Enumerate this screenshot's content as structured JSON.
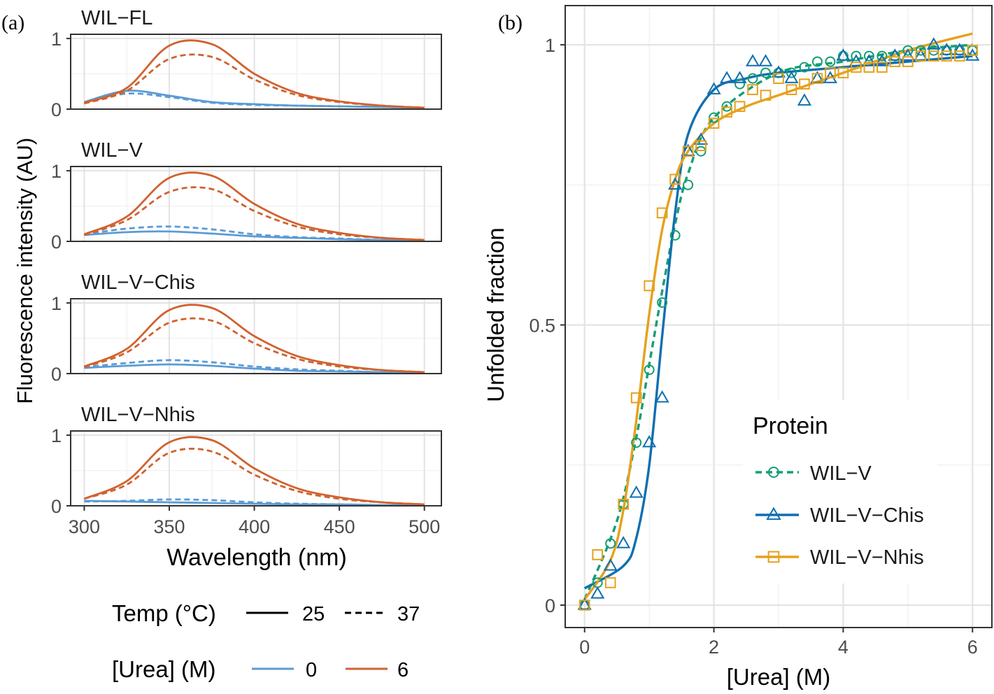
{
  "panel_a": {
    "label": "(a)",
    "ylabel": "Fluorescence intensity (AU)",
    "xlabel": "Wavelength (nm)",
    "legend": {
      "temp_title": "Temp (°C)",
      "temp_levels": [
        {
          "label": "25",
          "dash": "solid"
        },
        {
          "label": "37",
          "dash": "dashed"
        }
      ],
      "urea_title": "[Urea] (M)",
      "urea_levels": [
        {
          "label": "0",
          "color": "#5b9bd5"
        },
        {
          "label": "6",
          "color": "#d0622f"
        }
      ]
    }
  },
  "panel_b": {
    "label": "(b)",
    "legend_title": "Protein",
    "legend_entries": [
      {
        "label": "WIL−V",
        "color": "#139e74",
        "marker": "circle",
        "line": "dashed"
      },
      {
        "label": "WIL−V−Chis",
        "color": "#0f6fb0",
        "marker": "triangle",
        "line": "solid"
      },
      {
        "label": "WIL−V−Nhis",
        "color": "#e5a11c",
        "marker": "square",
        "line": "solid"
      }
    ]
  },
  "chart_data": [
    {
      "type": "line",
      "facet_strip": "WIL−FL",
      "xlabel": "Wavelength (nm)",
      "ylabel": "Fluorescence intensity (AU)",
      "xlim": [
        292,
        510
      ],
      "ylim": [
        0,
        1.06
      ],
      "xticks": [
        300,
        350,
        400,
        450,
        500
      ],
      "yticks": [
        0,
        1
      ],
      "grid": true,
      "x": [
        300,
        325,
        350,
        375,
        400,
        425,
        450,
        475,
        500
      ],
      "series": [
        {
          "urea": "0",
          "temp": "25",
          "values": [
            0.1,
            0.26,
            0.19,
            0.1,
            0.07,
            0.05,
            0.04,
            0.03,
            0.02
          ]
        },
        {
          "urea": "0",
          "temp": "37",
          "values": [
            0.09,
            0.22,
            0.17,
            0.09,
            0.06,
            0.05,
            0.04,
            0.03,
            0.02
          ]
        },
        {
          "urea": "6",
          "temp": "25",
          "values": [
            0.09,
            0.3,
            0.9,
            0.92,
            0.5,
            0.23,
            0.11,
            0.05,
            0.02
          ]
        },
        {
          "urea": "6",
          "temp": "37",
          "values": [
            0.08,
            0.26,
            0.71,
            0.74,
            0.42,
            0.2,
            0.1,
            0.05,
            0.02
          ]
        }
      ]
    },
    {
      "type": "line",
      "facet_strip": "WIL−V",
      "xlabel": "Wavelength (nm)",
      "ylabel": "Fluorescence intensity (AU)",
      "xlim": [
        292,
        510
      ],
      "ylim": [
        0,
        1.06
      ],
      "xticks": [
        300,
        350,
        400,
        450,
        500
      ],
      "yticks": [
        0,
        1
      ],
      "grid": true,
      "x": [
        300,
        325,
        350,
        375,
        400,
        425,
        450,
        475,
        500
      ],
      "series": [
        {
          "urea": "0",
          "temp": "25",
          "values": [
            0.09,
            0.13,
            0.14,
            0.11,
            0.07,
            0.05,
            0.03,
            0.02,
            0.01
          ]
        },
        {
          "urea": "0",
          "temp": "37",
          "values": [
            0.1,
            0.18,
            0.21,
            0.17,
            0.1,
            0.06,
            0.04,
            0.02,
            0.01
          ]
        },
        {
          "urea": "6",
          "temp": "25",
          "values": [
            0.1,
            0.35,
            0.9,
            0.93,
            0.53,
            0.25,
            0.12,
            0.05,
            0.02
          ]
        },
        {
          "urea": "6",
          "temp": "37",
          "values": [
            0.09,
            0.3,
            0.7,
            0.74,
            0.43,
            0.21,
            0.1,
            0.05,
            0.02
          ]
        }
      ]
    },
    {
      "type": "line",
      "facet_strip": "WIL−V−Chis",
      "xlabel": "Wavelength (nm)",
      "ylabel": "Fluorescence intensity (AU)",
      "xlim": [
        292,
        510
      ],
      "ylim": [
        0,
        1.06
      ],
      "xticks": [
        300,
        350,
        400,
        450,
        500
      ],
      "yticks": [
        0,
        1
      ],
      "grid": true,
      "x": [
        300,
        325,
        350,
        375,
        400,
        425,
        450,
        475,
        500
      ],
      "series": [
        {
          "urea": "0",
          "temp": "25",
          "values": [
            0.08,
            0.11,
            0.13,
            0.11,
            0.07,
            0.04,
            0.03,
            0.02,
            0.01
          ]
        },
        {
          "urea": "0",
          "temp": "37",
          "values": [
            0.09,
            0.15,
            0.19,
            0.16,
            0.1,
            0.06,
            0.04,
            0.02,
            0.01
          ]
        },
        {
          "urea": "6",
          "temp": "25",
          "values": [
            0.1,
            0.35,
            0.9,
            0.93,
            0.53,
            0.25,
            0.12,
            0.05,
            0.02
          ]
        },
        {
          "urea": "6",
          "temp": "37",
          "values": [
            0.09,
            0.3,
            0.72,
            0.75,
            0.43,
            0.21,
            0.1,
            0.05,
            0.02
          ]
        }
      ]
    },
    {
      "type": "line",
      "facet_strip": "WIL−V−Nhis",
      "xlabel": "Wavelength (nm)",
      "ylabel": "Fluorescence intensity (AU)",
      "xlim": [
        292,
        510
      ],
      "ylim": [
        0,
        1.06
      ],
      "xticks": [
        300,
        350,
        400,
        450,
        500
      ],
      "yticks": [
        0,
        1
      ],
      "grid": true,
      "x": [
        300,
        325,
        350,
        375,
        400,
        425,
        450,
        475,
        500
      ],
      "series": [
        {
          "urea": "0",
          "temp": "25",
          "values": [
            0.07,
            0.06,
            0.05,
            0.04,
            0.03,
            0.02,
            0.02,
            0.01,
            0.01
          ]
        },
        {
          "urea": "0",
          "temp": "37",
          "values": [
            0.06,
            0.07,
            0.09,
            0.08,
            0.05,
            0.03,
            0.02,
            0.01,
            0.01
          ]
        },
        {
          "urea": "6",
          "temp": "25",
          "values": [
            0.1,
            0.35,
            0.9,
            0.93,
            0.53,
            0.25,
            0.12,
            0.05,
            0.02
          ]
        },
        {
          "urea": "6",
          "temp": "37",
          "values": [
            0.1,
            0.3,
            0.75,
            0.77,
            0.44,
            0.21,
            0.1,
            0.05,
            0.02
          ]
        }
      ]
    },
    {
      "type": "scatter",
      "xlabel": "[Urea] (M)",
      "ylabel": "Unfolded fraction",
      "xlim": [
        -0.3,
        6.3
      ],
      "ylim": [
        -0.04,
        1.07
      ],
      "xticks": [
        0,
        2,
        4,
        6
      ],
      "yticks": [
        0,
        0.5,
        1
      ],
      "grid": true,
      "legend_position": "inside-bottom-right",
      "series": [
        {
          "name": "WIL−V",
          "points": {
            "x": [
              0,
              0.2,
              0.4,
              0.6,
              0.8,
              1.0,
              1.2,
              1.4,
              1.6,
              1.8,
              2.0,
              2.2,
              2.4,
              2.6,
              2.8,
              3.0,
              3.2,
              3.4,
              3.6,
              3.8,
              4.0,
              4.2,
              4.4,
              4.6,
              4.8,
              5.0,
              5.2,
              5.4,
              5.6,
              5.8,
              6.0
            ],
            "y": [
              0.0,
              0.04,
              0.11,
              0.18,
              0.29,
              0.42,
              0.54,
              0.66,
              0.75,
              0.81,
              0.87,
              0.89,
              0.93,
              0.94,
              0.95,
              0.95,
              0.95,
              0.96,
              0.97,
              0.97,
              0.98,
              0.98,
              0.98,
              0.98,
              0.98,
              0.99,
              0.99,
              0.99,
              0.99,
              0.99,
              0.99
            ]
          },
          "fit": {
            "x": [
              0,
              0.5,
              0.8,
              1.0,
              1.2,
              1.4,
              1.6,
              2.0,
              3.0,
              4.0,
              5.0,
              6.0
            ],
            "y": [
              0.01,
              0.15,
              0.3,
              0.43,
              0.56,
              0.68,
              0.77,
              0.87,
              0.95,
              0.97,
              0.99,
              1.0
            ]
          }
        },
        {
          "name": "WIL−V−Chis",
          "points": {
            "x": [
              0,
              0.2,
              0.4,
              0.6,
              0.8,
              1.0,
              1.2,
              1.4,
              1.6,
              1.8,
              2.0,
              2.2,
              2.4,
              2.6,
              2.8,
              3.0,
              3.2,
              3.4,
              3.6,
              3.8,
              4.0,
              4.2,
              4.4,
              4.6,
              4.8,
              5.0,
              5.2,
              5.4,
              5.6,
              5.8,
              6.0
            ],
            "y": [
              0.0,
              0.02,
              0.07,
              0.11,
              0.2,
              0.29,
              0.37,
              0.75,
              0.81,
              0.83,
              0.92,
              0.94,
              0.94,
              0.97,
              0.97,
              0.95,
              0.94,
              0.9,
              0.94,
              0.94,
              0.98,
              0.97,
              0.97,
              0.97,
              0.98,
              0.98,
              0.98,
              1.0,
              0.99,
              0.99,
              0.98
            ]
          },
          "fit": {
            "x": [
              0,
              0.6,
              0.8,
              1.0,
              1.2,
              1.4,
              1.6,
              2.0,
              2.5,
              3.0,
              4.0,
              5.0,
              6.0
            ],
            "y": [
              0.03,
              0.07,
              0.12,
              0.25,
              0.48,
              0.7,
              0.84,
              0.92,
              0.94,
              0.95,
              0.96,
              0.97,
              0.98
            ]
          }
        },
        {
          "name": "WIL−V−Nhis",
          "points": {
            "x": [
              0,
              0.2,
              0.4,
              0.6,
              0.8,
              1.0,
              1.2,
              1.4,
              1.6,
              1.8,
              2.0,
              2.2,
              2.4,
              2.6,
              2.8,
              3.0,
              3.2,
              3.4,
              3.6,
              3.8,
              4.0,
              4.2,
              4.4,
              4.6,
              4.8,
              5.0,
              5.2,
              5.4,
              5.6,
              5.8,
              6.0
            ],
            "y": [
              0.0,
              0.09,
              0.04,
              0.18,
              0.37,
              0.57,
              0.7,
              0.76,
              0.81,
              0.82,
              0.86,
              0.88,
              0.89,
              0.92,
              0.91,
              0.94,
              0.92,
              0.93,
              0.94,
              0.95,
              0.95,
              0.96,
              0.96,
              0.96,
              0.97,
              0.97,
              0.98,
              0.98,
              0.98,
              0.98,
              0.99
            ]
          },
          "fit": {
            "x": [
              0,
              0.4,
              0.6,
              0.8,
              1.0,
              1.2,
              1.4,
              1.6,
              2.0,
              2.5,
              3.0,
              4.0,
              5.0,
              6.0
            ],
            "y": [
              0.01,
              0.08,
              0.17,
              0.33,
              0.52,
              0.67,
              0.76,
              0.81,
              0.86,
              0.89,
              0.91,
              0.95,
              0.99,
              1.02
            ]
          }
        }
      ]
    }
  ]
}
